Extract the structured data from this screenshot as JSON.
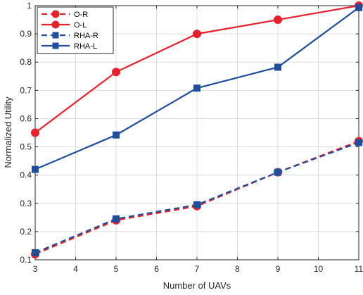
{
  "chart_data": {
    "type": "line",
    "xlabel": "Number of UAVs",
    "ylabel": "Normalized Utility",
    "x": [
      3,
      5,
      7,
      9,
      11
    ],
    "xlim": [
      3,
      11
    ],
    "ylim": [
      0.1,
      1
    ],
    "xticks": [
      "3",
      "4",
      "5",
      "6",
      "7",
      "8",
      "9",
      "10",
      "11"
    ],
    "yticks": [
      "0.1",
      "0.2",
      "0.3",
      "0.4",
      "0.5",
      "0.6",
      "0.7",
      "0.8",
      "0.9",
      "1"
    ],
    "grid": true,
    "legend_position": "top-left",
    "series": [
      {
        "name": "O-R",
        "values": [
          0.12,
          0.24,
          0.29,
          0.41,
          0.52
        ],
        "color": "#e8202a",
        "dash": "dashed",
        "marker": "circle"
      },
      {
        "name": "O-L",
        "values": [
          0.55,
          0.765,
          0.9,
          0.95,
          1.0
        ],
        "color": "#e8202a",
        "dash": "solid",
        "marker": "circle"
      },
      {
        "name": "RHA-R",
        "values": [
          0.125,
          0.245,
          0.295,
          0.41,
          0.515
        ],
        "color": "#1f4e9c",
        "dash": "dashed",
        "marker": "square"
      },
      {
        "name": "RHA-L",
        "values": [
          0.42,
          0.542,
          0.708,
          0.782,
          0.993
        ],
        "color": "#1f4e9c",
        "dash": "solid",
        "marker": "square"
      }
    ]
  }
}
